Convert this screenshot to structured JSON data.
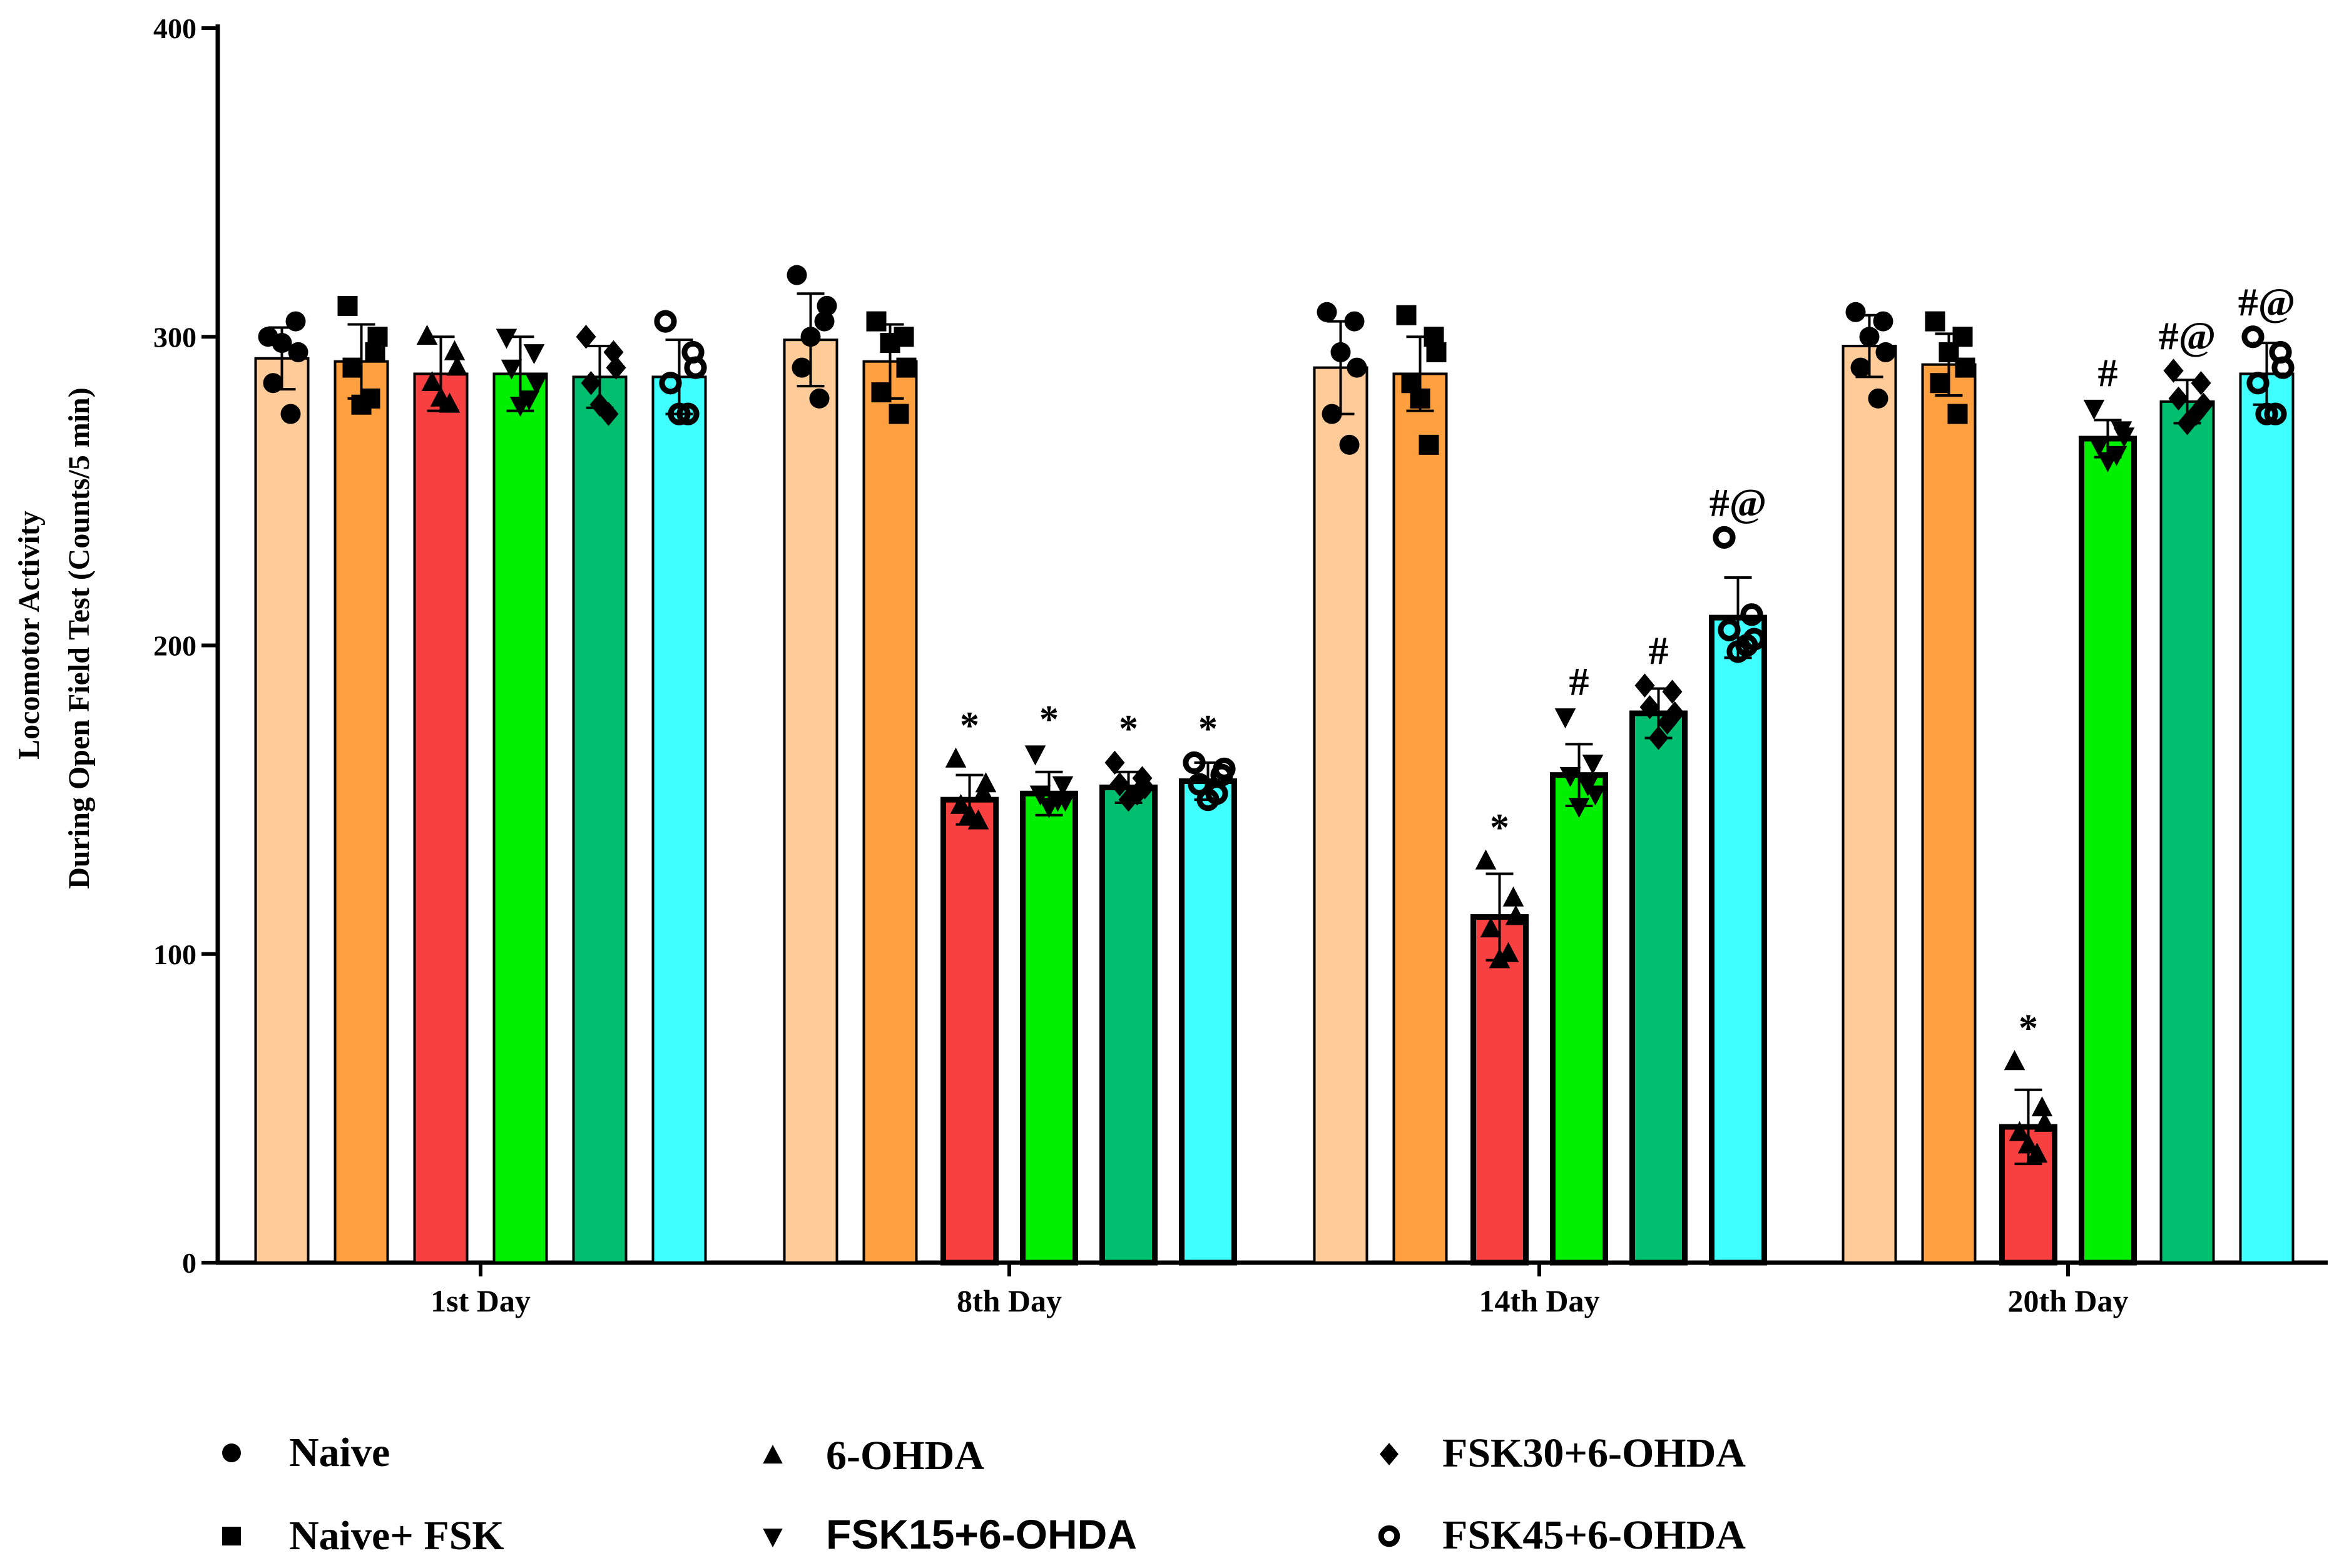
{
  "chart_data": {
    "type": "bar",
    "ylabel_line1": "Locomotor Activity",
    "ylabel_line2": "During  Open Field Test (Counts/5 min)",
    "ylim": [
      0,
      400
    ],
    "yticks": [
      0,
      100,
      200,
      300,
      400
    ],
    "categories": [
      "1st Day",
      "8th Day",
      "14th Day",
      "20th Day"
    ],
    "series": [
      {
        "name": "Naive",
        "color": "#FFCC99",
        "marker": "circle",
        "values": [
          293,
          299,
          290,
          297
        ],
        "errors": [
          10,
          15,
          15,
          10
        ],
        "points": [
          [
            300,
            305,
            285,
            275,
            298,
            295
          ],
          [
            320,
            305,
            290,
            280,
            300,
            310
          ],
          [
            308,
            305,
            275,
            265,
            295,
            290
          ],
          [
            308,
            305,
            290,
            280,
            300,
            295
          ]
        ],
        "annotations": [
          "",
          "",
          "",
          ""
        ]
      },
      {
        "name": "Naive+ FSK",
        "color": "#FFA040",
        "marker": "square",
        "values": [
          292,
          292,
          288,
          291
        ],
        "errors": [
          12,
          12,
          12,
          10
        ],
        "points": [
          [
            310,
            295,
            290,
            280,
            278,
            300
          ],
          [
            305,
            300,
            282,
            275,
            298,
            290
          ],
          [
            307,
            300,
            285,
            265,
            280,
            295
          ],
          [
            305,
            300,
            285,
            275,
            295,
            290
          ]
        ],
        "annotations": [
          "",
          "",
          "",
          ""
        ]
      },
      {
        "name": "6-OHDA",
        "color": "#F84040",
        "marker": "triangle-up",
        "values": [
          288,
          150,
          112,
          44
        ],
        "errors": [
          12,
          8,
          14,
          12
        ],
        "points": [
          [
            300,
            295,
            285,
            278,
            280,
            290
          ],
          [
            163,
            152,
            148,
            143,
            145,
            155
          ],
          [
            130,
            118,
            108,
            100,
            98,
            112
          ],
          [
            65,
            50,
            42,
            35,
            38,
            45
          ]
        ],
        "annotations": [
          "",
          "*",
          "*",
          "*"
        ]
      },
      {
        "name": "FSK15+6-OHDA",
        "color": "#00F000",
        "marker": "triangle-down",
        "values": [
          288,
          152,
          158,
          267
        ],
        "errors": [
          12,
          7,
          10,
          6
        ],
        "points": [
          [
            300,
            295,
            290,
            280,
            278,
            285
          ],
          [
            165,
            155,
            152,
            150,
            148,
            150
          ],
          [
            177,
            162,
            158,
            155,
            148,
            152
          ],
          [
            277,
            270,
            265,
            262,
            260,
            268
          ]
        ],
        "annotations": [
          "",
          "*",
          "#",
          "#"
        ]
      },
      {
        "name": "FSK30+6-OHDA",
        "color": "#00C070",
        "marker": "diamond",
        "values": [
          287,
          154,
          178,
          279
        ],
        "errors": [
          10,
          5,
          8,
          7
        ],
        "points": [
          [
            300,
            295,
            285,
            275,
            278,
            290
          ],
          [
            162,
            157,
            155,
            152,
            150,
            154
          ],
          [
            187,
            185,
            180,
            175,
            170,
            178
          ],
          [
            289,
            285,
            280,
            275,
            272,
            278
          ]
        ],
        "annotations": [
          "",
          "*",
          "#",
          "#@"
        ]
      },
      {
        "name": "FSK45+6-OHDA",
        "color": "#40FFFF",
        "marker": "circle-open",
        "values": [
          287,
          156,
          209,
          288
        ],
        "errors": [
          12,
          6,
          13,
          10
        ],
        "points": [
          [
            305,
            295,
            285,
            275,
            275,
            290
          ],
          [
            162,
            158,
            155,
            152,
            150,
            160
          ],
          [
            235,
            210,
            205,
            200,
            198,
            202
          ],
          [
            300,
            295,
            285,
            275,
            275,
            290
          ]
        ],
        "annotations": [
          "",
          "*",
          "#@",
          "#@"
        ]
      }
    ]
  },
  "legend": {
    "items": [
      "Naive",
      "Naive+ FSK",
      "6-OHDA",
      "FSK15+6-OHDA",
      "FSK30+6-OHDA",
      "FSK45+6-OHDA"
    ]
  }
}
